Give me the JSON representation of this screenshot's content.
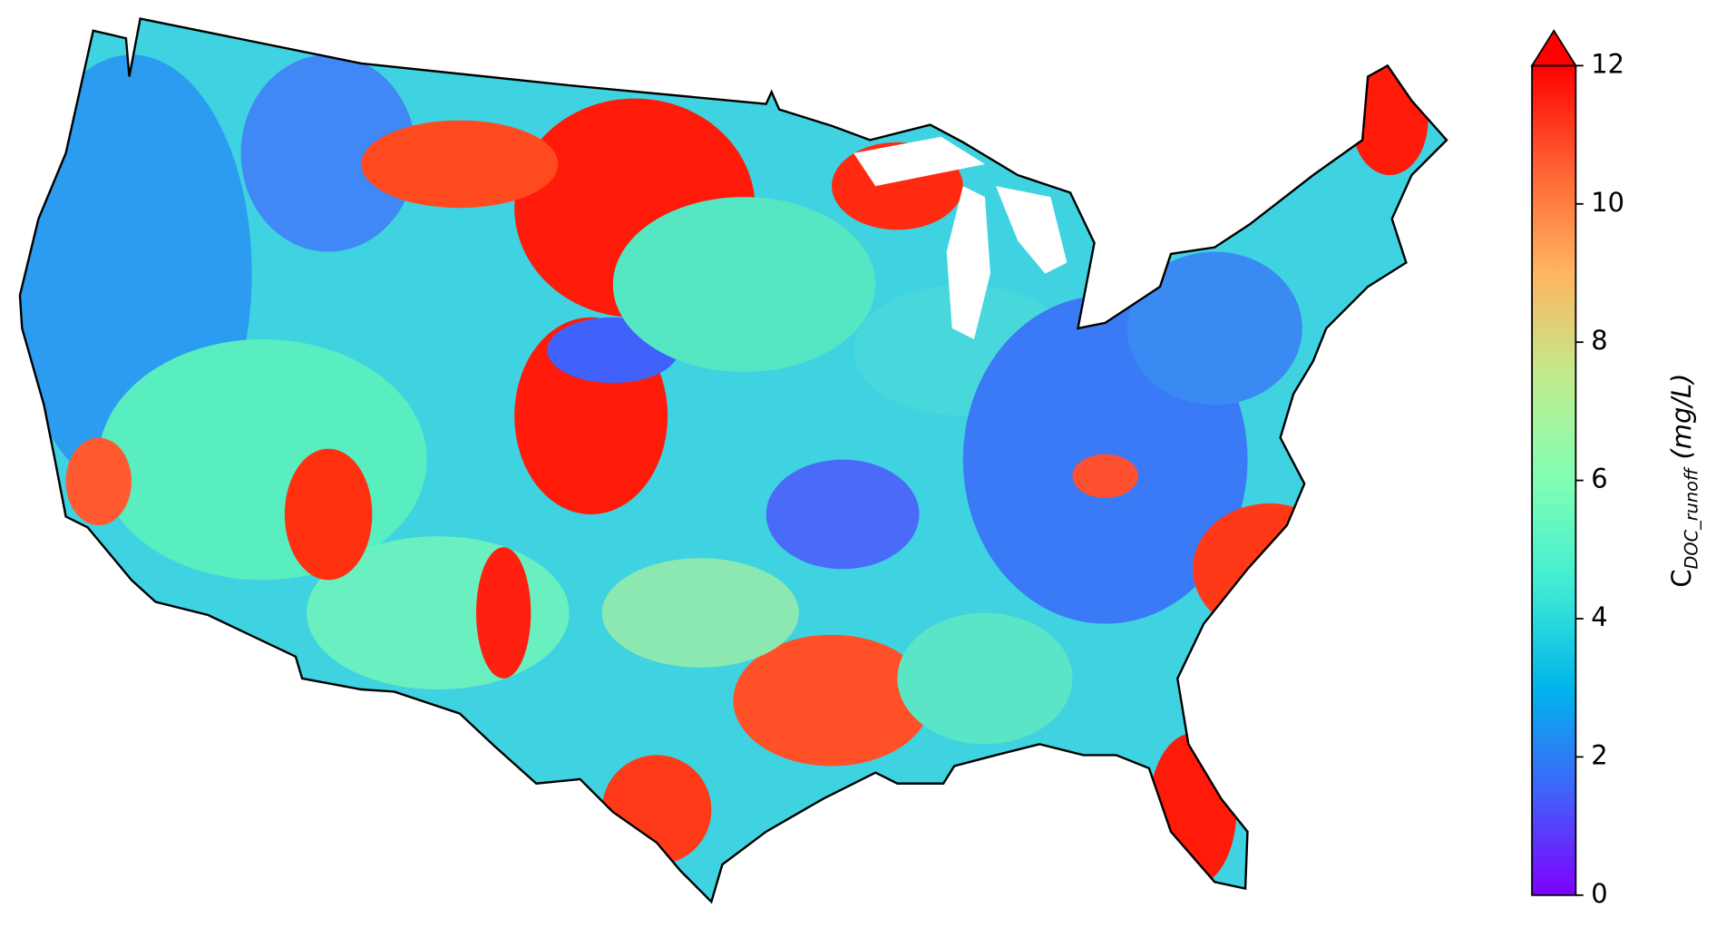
{
  "chart_data": {
    "type": "colorbar-map",
    "colorbar": {
      "label": {
        "symbol": "C",
        "subscript": "DOC_runoff",
        "unit": "(mg/L)"
      },
      "lim": [
        0,
        12
      ],
      "ticks": [
        0,
        2,
        4,
        6,
        8,
        10,
        12
      ],
      "colors": [
        "#8000ff",
        "#4062fa",
        "#00b5eb",
        "#40ecd4",
        "#80ffb4",
        "#c0eb8d",
        "#ffb462",
        "#ff6232",
        "#ff0000"
      ],
      "extend": "max"
    }
  }
}
